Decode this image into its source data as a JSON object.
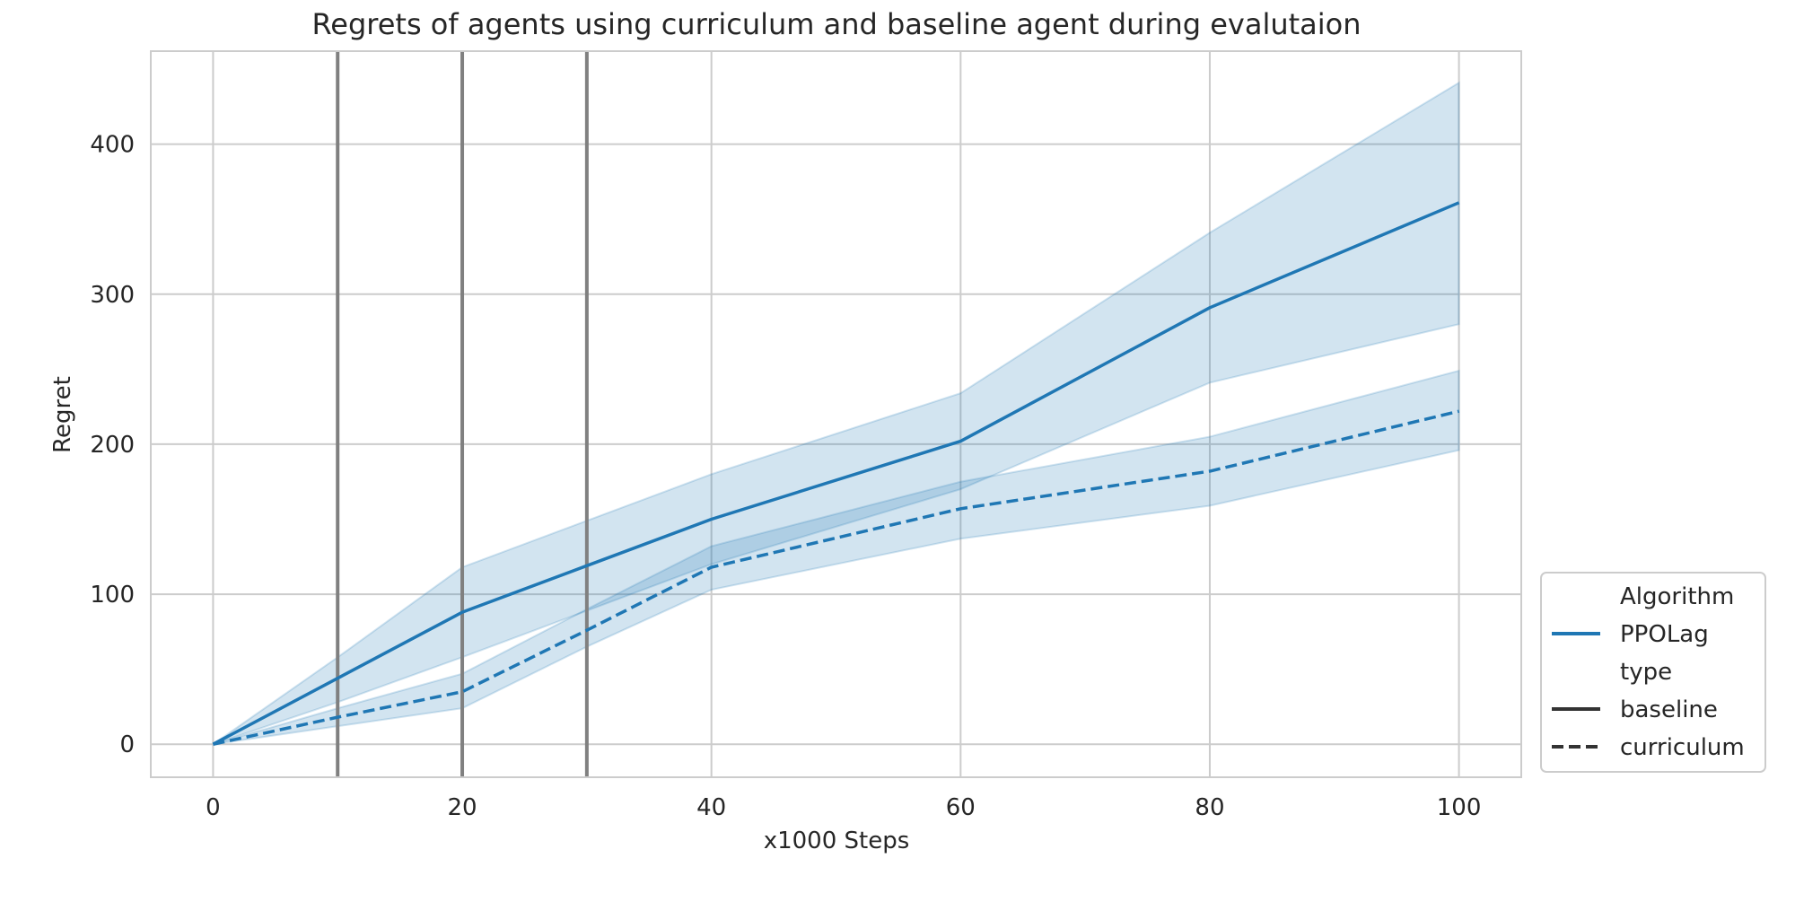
{
  "chart_data": {
    "type": "line",
    "title": "Regrets of agents using curriculum and baseline agent during evalutaion",
    "xlabel": "x1000 Steps",
    "ylabel": "Regret",
    "xlim": [
      -5,
      105
    ],
    "ylim": [
      -22,
      462
    ],
    "xticks": [
      0,
      20,
      40,
      60,
      80,
      100
    ],
    "yticks": [
      0,
      100,
      200,
      300,
      400
    ],
    "grid": true,
    "vlines": [
      10,
      20,
      30
    ],
    "x": [
      0,
      10,
      20,
      30,
      40,
      60,
      80,
      100
    ],
    "series": [
      {
        "name": "baseline",
        "algorithm": "PPOLag",
        "style": "solid",
        "values": [
          0,
          44,
          88,
          119,
          150,
          202,
          291,
          361
        ],
        "lower": [
          0,
          28,
          58,
          89,
          120,
          170,
          241,
          280
        ],
        "upper": [
          0,
          58,
          118,
          149,
          180,
          234,
          341,
          441
        ]
      },
      {
        "name": "curriculum",
        "algorithm": "PPOLag",
        "style": "dashed",
        "values": [
          0,
          18,
          35,
          76,
          118,
          157,
          182,
          222
        ],
        "lower": [
          0,
          12,
          24,
          65,
          103,
          137,
          159,
          196
        ],
        "upper": [
          0,
          24,
          47,
          90,
          132,
          175,
          205,
          249
        ]
      }
    ],
    "colors": {
      "series": "#1f77b4",
      "band": "#1f77b4",
      "vline": "#808080",
      "grid": "#cccccc",
      "legend_style_line": "#333333"
    },
    "legend": {
      "placement": "lower-right-outside",
      "entries": [
        {
          "label": "Algorithm",
          "kind": "header"
        },
        {
          "label": "PPOLag",
          "kind": "color"
        },
        {
          "label": "type",
          "kind": "header"
        },
        {
          "label": "baseline",
          "kind": "solid"
        },
        {
          "label": "curriculum",
          "kind": "dashed"
        }
      ]
    }
  }
}
